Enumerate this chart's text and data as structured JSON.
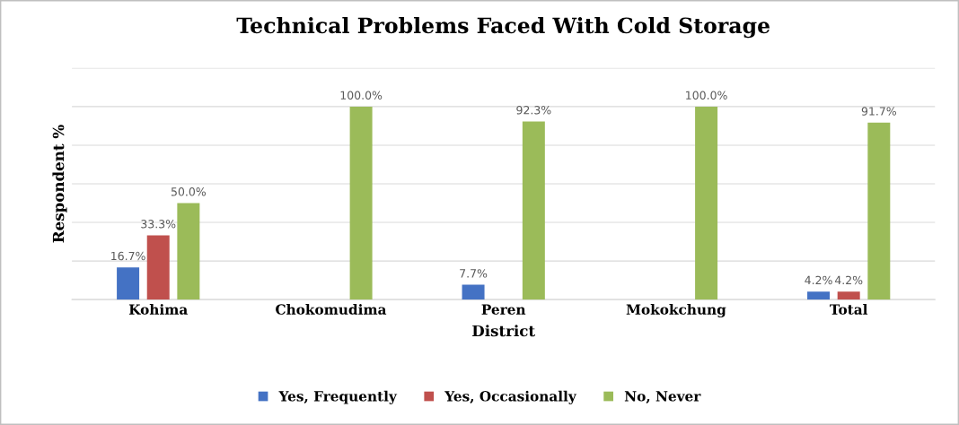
{
  "chart_data": {
    "type": "bar",
    "title": "Technical Problems Faced With Cold Storage",
    "xlabel": "District",
    "ylabel": "Respondent %",
    "categories": [
      "Kohima",
      "Chokomudima",
      "Peren",
      "Mokokchung",
      "Total"
    ],
    "series": [
      {
        "name": "Yes, Frequently",
        "color": "#4472c4",
        "values": [
          16.7,
          0,
          7.7,
          0,
          4.2
        ],
        "value_labels": [
          "16.7%",
          null,
          "7.7%",
          null,
          "4.2%"
        ]
      },
      {
        "name": "Yes, Occasionally",
        "color": "#c0504d",
        "values": [
          33.3,
          0,
          0,
          0,
          4.2
        ],
        "value_labels": [
          "33.3%",
          null,
          null,
          null,
          "4.2%"
        ]
      },
      {
        "name": "No, Never",
        "color": "#9bbb59",
        "values": [
          50.0,
          100.0,
          92.3,
          100.0,
          91.7
        ],
        "value_labels": [
          "50.0%",
          "100.0%",
          "92.3%",
          "100.0%",
          "91.7%"
        ]
      }
    ],
    "ylim": [
      0,
      120
    ],
    "yticks": [
      {
        "value": 0,
        "label": null
      },
      {
        "value": 20,
        "label": null
      },
      {
        "value": 40,
        "label": null
      },
      {
        "value": 60,
        "label": null
      },
      {
        "value": 80,
        "label": null
      },
      {
        "value": 100,
        "label": null
      },
      {
        "value": 120,
        "label": null
      }
    ],
    "grid": "y",
    "legend": "bottom",
    "tick_labels": "x"
  }
}
